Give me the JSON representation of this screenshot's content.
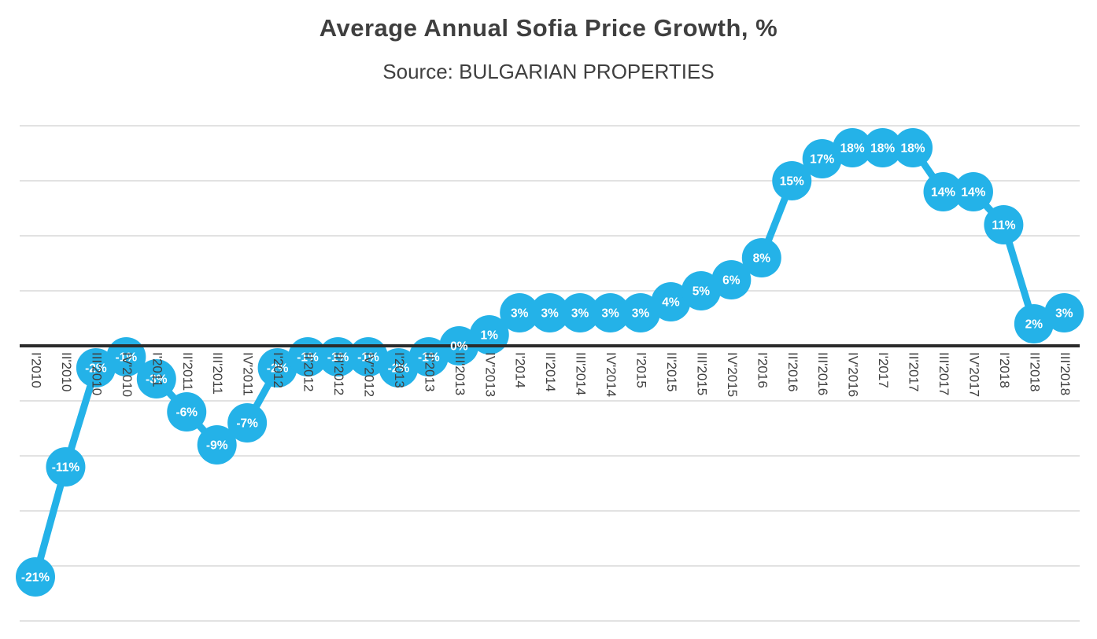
{
  "title": "Average Annual Sofia Price Growth, %",
  "subtitle": "Source: BULGARIAN PROPERTIES",
  "colors": {
    "accent": "#24b2e8",
    "grid": "#d9d9d9",
    "zero_axis": "#2b2b2b",
    "axis_text": "#404040",
    "marker_label": "#ffffff"
  },
  "chart_data": {
    "type": "line",
    "title": "Average Annual Sofia Price Growth, %",
    "subtitle": "Source: BULGARIAN PROPERTIES",
    "categories": [
      "I'2010",
      "II'2010",
      "III'2010",
      "IV'2010",
      "I'2011",
      "II'2011",
      "III'2011",
      "IV'2011",
      "I'2012",
      "II'2012",
      "III'2012",
      "IV'2012",
      "I'2013",
      "II'2013",
      "III'2013",
      "IV'2013",
      "I'2014",
      "II'2014",
      "III'2014",
      "IV'2014",
      "I'2015",
      "II'2015",
      "III'2015",
      "IV'2015",
      "I'2016",
      "II'2016",
      "III'2016",
      "IV'2016",
      "I'2017",
      "II'2017",
      "III'2017",
      "IV'2017",
      "I'2018",
      "II'2018",
      "III'2018"
    ],
    "values": [
      -21,
      -11,
      -2,
      -1,
      -3,
      -6,
      -9,
      -7,
      -2,
      -1,
      -1,
      -1,
      -2,
      -1,
      0,
      1,
      3,
      3,
      3,
      3,
      3,
      4,
      5,
      6,
      8,
      15,
      17,
      18,
      18,
      18,
      14,
      14,
      11,
      2,
      3
    ],
    "unit": "%",
    "xlabel": "",
    "ylabel": "",
    "ylim": [
      -25,
      20
    ],
    "gridline_step": 5,
    "grid": true,
    "legend": false,
    "data_labels": "inside-markers",
    "x_tick_rotation_deg": 90
  }
}
